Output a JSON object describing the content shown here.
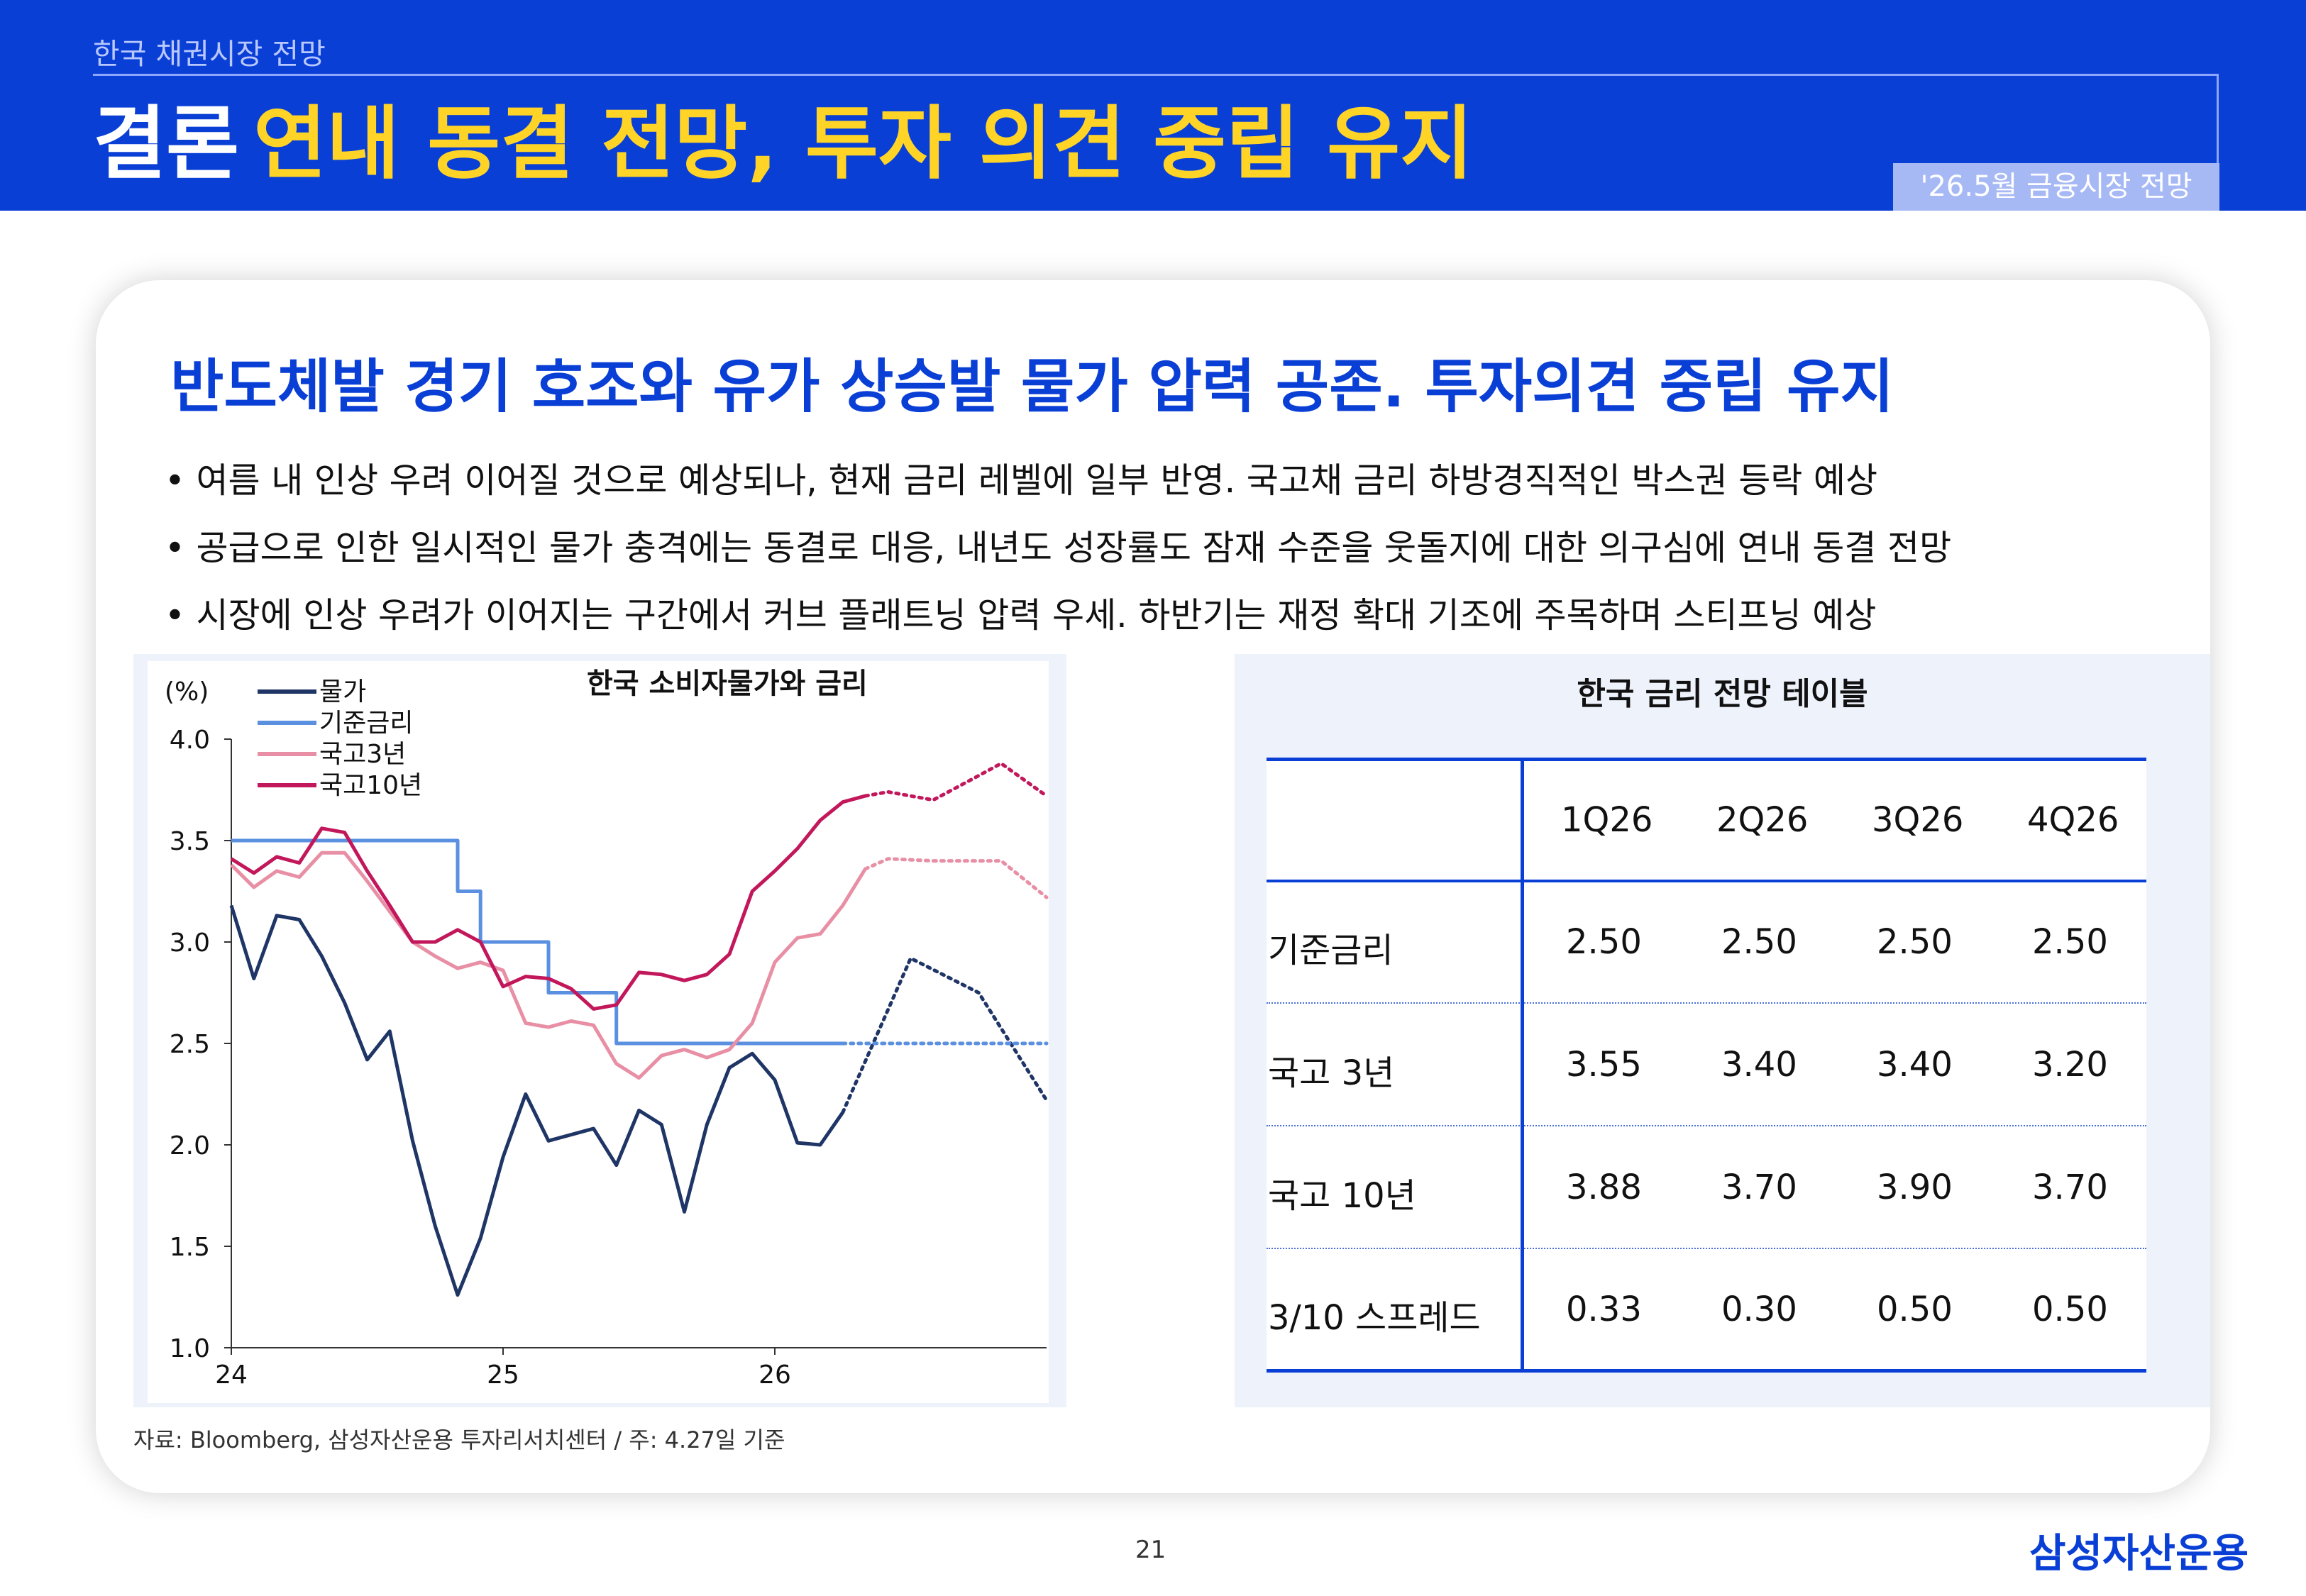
{
  "header": {
    "subtitle": "한국 채권시장 전망",
    "title_main": "결론",
    "title_highlight": "연내 동결 전망, 투자 의견 중립 유지",
    "pill": "'26.5월 금융시장 전망",
    "bg_color": "#0a3fd6",
    "highlight_color": "#ffd426"
  },
  "headline": "반도체발 경기 호조와 유가 상승발 물가 압력 공존. 투자의견 중립 유지",
  "bullets": [
    "• 여름 내 인상 우려 이어질 것으로 예상되나, 현재 금리 레벨에 일부 반영. 국고채 금리 하방경직적인 박스권 등락 예상",
    "• 공급으로 인한 일시적인 물가 충격에는 동결로 대응, 내년도 성장률도 잠재 수준을 웃돌지에 대한 의구심에 연내 동결 전망",
    "• 시장에 인상 우려가 이어지는 구간에서 커브 플래트닝 압력 우세. 하반기는 재정 확대 기조에 주목하며 스티프닝 예상"
  ],
  "chart_data": {
    "type": "line",
    "title": "한국 소비자물가와 금리",
    "ylabel": "(%)",
    "ylim": [
      1.0,
      4.0
    ],
    "yticks": [
      "4.0",
      "3.5",
      "3.0",
      "2.5",
      "2.0",
      "1.5",
      "1.0"
    ],
    "ytick_values": [
      4.0,
      3.5,
      3.0,
      2.5,
      2.0,
      1.5,
      1.0
    ],
    "xlim": [
      24.0,
      27.0
    ],
    "xticks": [
      "24",
      "25",
      "26"
    ],
    "xtick_values": [
      24,
      25,
      26
    ],
    "grid": false,
    "legend_position": "top-left",
    "series": [
      {
        "name": "물가",
        "color": "#1f3566",
        "actual": [
          [
            24.0,
            3.18
          ],
          [
            24.083,
            2.82
          ],
          [
            24.167,
            3.13
          ],
          [
            24.25,
            3.11
          ],
          [
            24.333,
            2.93
          ],
          [
            24.417,
            2.7
          ],
          [
            24.5,
            2.42
          ],
          [
            24.583,
            2.56
          ],
          [
            24.667,
            2.02
          ],
          [
            24.75,
            1.6
          ],
          [
            24.833,
            1.26
          ],
          [
            24.917,
            1.54
          ],
          [
            25.0,
            1.94
          ],
          [
            25.083,
            2.25
          ],
          [
            25.167,
            2.02
          ],
          [
            25.25,
            2.05
          ],
          [
            25.333,
            2.08
          ],
          [
            25.417,
            1.9
          ],
          [
            25.5,
            2.17
          ],
          [
            25.583,
            2.1
          ],
          [
            25.667,
            1.67
          ],
          [
            25.75,
            2.1
          ],
          [
            25.833,
            2.38
          ],
          [
            25.917,
            2.45
          ],
          [
            26.0,
            2.32
          ],
          [
            26.083,
            2.01
          ],
          [
            26.167,
            2.0
          ],
          [
            26.25,
            2.16
          ]
        ],
        "forecast": [
          [
            26.25,
            2.16
          ],
          [
            26.5,
            2.92
          ],
          [
            26.75,
            2.75
          ],
          [
            27.0,
            2.22
          ]
        ]
      },
      {
        "name": "기준금리",
        "color": "#5b8fe0",
        "actual": [
          [
            24.0,
            3.5
          ],
          [
            24.833,
            3.5
          ],
          [
            24.833,
            3.25
          ],
          [
            24.917,
            3.25
          ],
          [
            24.917,
            3.0
          ],
          [
            25.167,
            3.0
          ],
          [
            25.167,
            2.75
          ],
          [
            25.417,
            2.75
          ],
          [
            25.417,
            2.5
          ],
          [
            26.25,
            2.5
          ]
        ],
        "forecast": [
          [
            26.25,
            2.5
          ],
          [
            27.0,
            2.5
          ]
        ]
      },
      {
        "name": "국고3년",
        "color": "#e88fa5",
        "actual": [
          [
            24.0,
            3.38
          ],
          [
            24.083,
            3.27
          ],
          [
            24.167,
            3.35
          ],
          [
            24.25,
            3.32
          ],
          [
            24.333,
            3.44
          ],
          [
            24.417,
            3.44
          ],
          [
            24.5,
            3.3
          ],
          [
            24.583,
            3.15
          ],
          [
            24.667,
            3.0
          ],
          [
            24.75,
            2.93
          ],
          [
            24.833,
            2.87
          ],
          [
            24.917,
            2.9
          ],
          [
            25.0,
            2.86
          ],
          [
            25.083,
            2.6
          ],
          [
            25.167,
            2.58
          ],
          [
            25.25,
            2.61
          ],
          [
            25.333,
            2.59
          ],
          [
            25.417,
            2.4
          ],
          [
            25.5,
            2.33
          ],
          [
            25.583,
            2.44
          ],
          [
            25.667,
            2.47
          ],
          [
            25.75,
            2.43
          ],
          [
            25.833,
            2.47
          ],
          [
            25.917,
            2.6
          ],
          [
            26.0,
            2.9
          ],
          [
            26.083,
            3.02
          ],
          [
            26.167,
            3.04
          ],
          [
            26.25,
            3.18
          ],
          [
            26.333,
            3.36
          ]
        ],
        "forecast": [
          [
            26.333,
            3.36
          ],
          [
            26.417,
            3.41
          ],
          [
            26.583,
            3.4
          ],
          [
            26.833,
            3.4
          ],
          [
            27.0,
            3.22
          ]
        ]
      },
      {
        "name": "국고10년",
        "color": "#c2185b",
        "actual": [
          [
            24.0,
            3.41
          ],
          [
            24.083,
            3.34
          ],
          [
            24.167,
            3.42
          ],
          [
            24.25,
            3.39
          ],
          [
            24.333,
            3.56
          ],
          [
            24.417,
            3.54
          ],
          [
            24.5,
            3.35
          ],
          [
            24.583,
            3.18
          ],
          [
            24.667,
            3.0
          ],
          [
            24.75,
            3.0
          ],
          [
            24.833,
            3.06
          ],
          [
            24.917,
            3.0
          ],
          [
            25.0,
            2.78
          ],
          [
            25.083,
            2.83
          ],
          [
            25.167,
            2.82
          ],
          [
            25.25,
            2.77
          ],
          [
            25.333,
            2.67
          ],
          [
            25.417,
            2.69
          ],
          [
            25.5,
            2.85
          ],
          [
            25.583,
            2.84
          ],
          [
            25.667,
            2.81
          ],
          [
            25.75,
            2.84
          ],
          [
            25.833,
            2.94
          ],
          [
            25.917,
            3.25
          ],
          [
            26.0,
            3.35
          ],
          [
            26.083,
            3.46
          ],
          [
            26.167,
            3.6
          ],
          [
            26.25,
            3.69
          ],
          [
            26.333,
            3.72
          ]
        ],
        "forecast": [
          [
            26.333,
            3.72
          ],
          [
            26.417,
            3.74
          ],
          [
            26.583,
            3.7
          ],
          [
            26.75,
            3.82
          ],
          [
            26.833,
            3.88
          ],
          [
            27.0,
            3.72
          ]
        ]
      }
    ]
  },
  "table": {
    "title": "한국 금리 전망 테이블",
    "columns": [
      "1Q26",
      "2Q26",
      "3Q26",
      "4Q26"
    ],
    "rows": [
      {
        "label": "기준금리",
        "values": [
          "2.50",
          "2.50",
          "2.50",
          "2.50"
        ]
      },
      {
        "label": "국고 3년",
        "values": [
          "3.55",
          "3.40",
          "3.40",
          "3.20"
        ]
      },
      {
        "label": "국고 10년",
        "values": [
          "3.88",
          "3.70",
          "3.90",
          "3.70"
        ]
      },
      {
        "label": "3/10 스프레드",
        "values": [
          "0.33",
          "0.30",
          "0.50",
          "0.50"
        ]
      }
    ]
  },
  "source": "자료: Bloomberg, 삼성자산운용 투자리서치센터 / 주: 4.27일 기준",
  "page_number": "21",
  "logo": "삼성자산운용"
}
